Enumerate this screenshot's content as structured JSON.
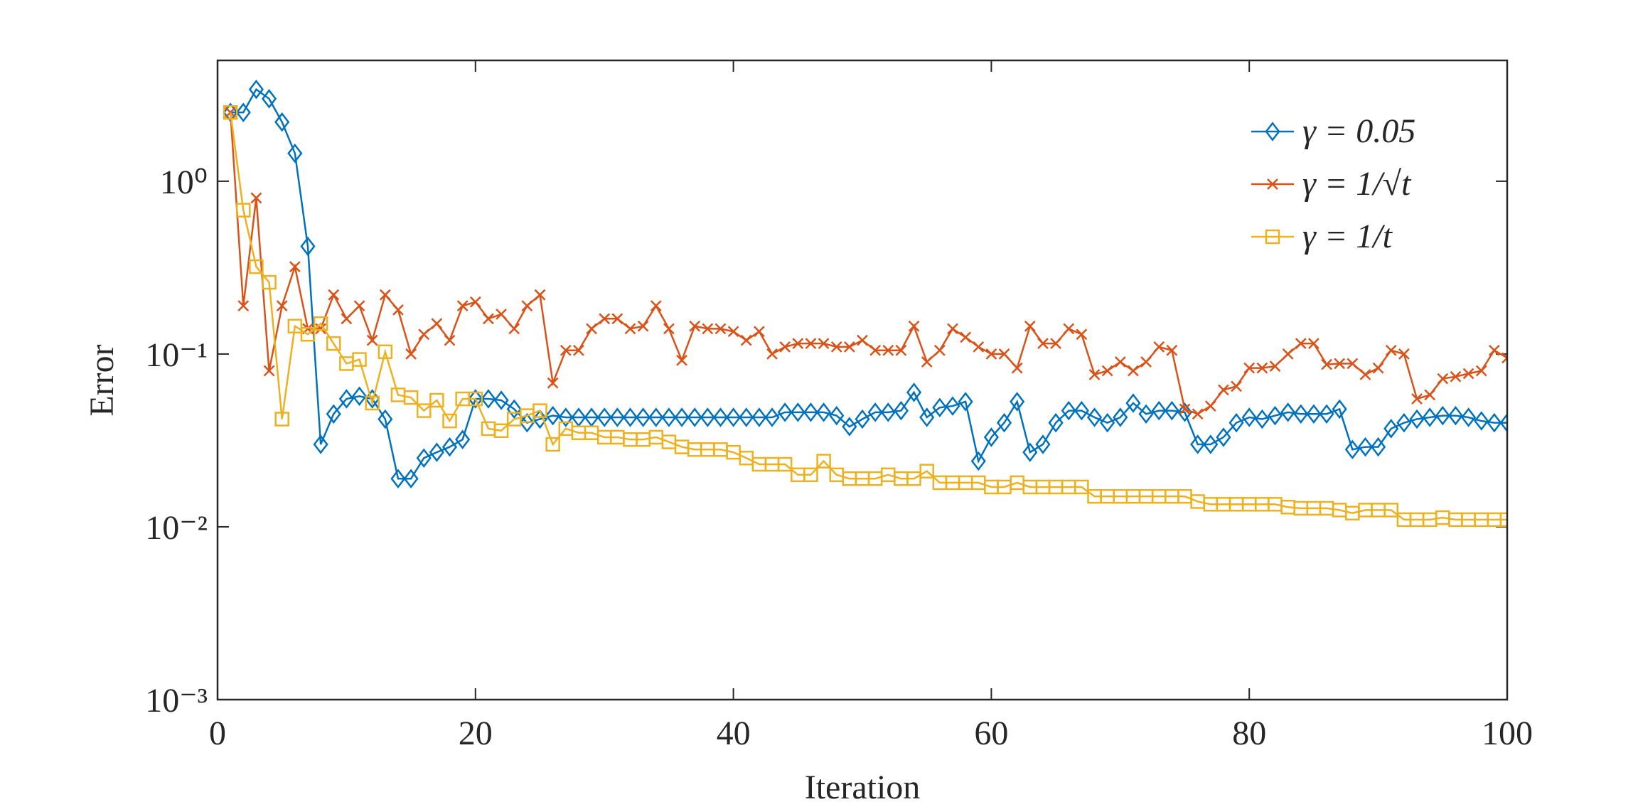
{
  "chart_data": {
    "type": "line",
    "xlabel": "Iteration",
    "ylabel": "Error",
    "x": [
      1,
      2,
      3,
      4,
      5,
      6,
      7,
      8,
      9,
      10,
      11,
      12,
      13,
      14,
      15,
      16,
      17,
      18,
      19,
      20,
      21,
      22,
      23,
      24,
      25,
      26,
      27,
      28,
      29,
      30,
      31,
      32,
      33,
      34,
      35,
      36,
      37,
      38,
      39,
      40,
      41,
      42,
      43,
      44,
      45,
      46,
      47,
      48,
      49,
      50,
      51,
      52,
      53,
      54,
      55,
      56,
      57,
      58,
      59,
      60,
      61,
      62,
      63,
      64,
      65,
      66,
      67,
      68,
      69,
      70,
      71,
      72,
      73,
      74,
      75,
      76,
      77,
      78,
      79,
      80,
      81,
      82,
      83,
      84,
      85,
      86,
      87,
      88,
      89,
      90,
      91,
      92,
      93,
      94,
      95,
      96,
      97,
      98,
      99,
      100
    ],
    "series": [
      {
        "name": "γ = 0.05",
        "color": "#0072BD",
        "marker": "diamond",
        "values": [
          2.5,
          2.5,
          3.4,
          3.0,
          2.2,
          1.45,
          0.42,
          0.03,
          0.045,
          0.055,
          0.057,
          0.055,
          0.042,
          0.019,
          0.019,
          0.025,
          0.027,
          0.029,
          0.032,
          0.055,
          0.055,
          0.054,
          0.048,
          0.04,
          0.042,
          0.044,
          0.043,
          0.043,
          0.043,
          0.043,
          0.043,
          0.043,
          0.043,
          0.043,
          0.043,
          0.043,
          0.043,
          0.043,
          0.043,
          0.043,
          0.043,
          0.043,
          0.043,
          0.046,
          0.046,
          0.046,
          0.046,
          0.044,
          0.038,
          0.042,
          0.046,
          0.046,
          0.047,
          0.06,
          0.043,
          0.049,
          0.05,
          0.053,
          0.024,
          0.033,
          0.04,
          0.053,
          0.027,
          0.03,
          0.04,
          0.047,
          0.047,
          0.043,
          0.04,
          0.043,
          0.052,
          0.045,
          0.047,
          0.047,
          0.046,
          0.03,
          0.03,
          0.033,
          0.04,
          0.043,
          0.042,
          0.044,
          0.046,
          0.045,
          0.045,
          0.045,
          0.048,
          0.028,
          0.029,
          0.029,
          0.037,
          0.04,
          0.042,
          0.043,
          0.044,
          0.044,
          0.043,
          0.041,
          0.04,
          0.04
        ]
      },
      {
        "name": "γ = 1/√t",
        "color": "#D95319",
        "marker": "x",
        "values": [
          2.5,
          0.19,
          0.8,
          0.08,
          0.19,
          0.32,
          0.14,
          0.14,
          0.22,
          0.16,
          0.19,
          0.12,
          0.22,
          0.18,
          0.1,
          0.13,
          0.15,
          0.12,
          0.19,
          0.2,
          0.16,
          0.17,
          0.14,
          0.19,
          0.22,
          0.068,
          0.105,
          0.105,
          0.14,
          0.16,
          0.16,
          0.14,
          0.145,
          0.19,
          0.14,
          0.092,
          0.145,
          0.14,
          0.14,
          0.135,
          0.12,
          0.135,
          0.1,
          0.11,
          0.115,
          0.115,
          0.115,
          0.11,
          0.11,
          0.12,
          0.105,
          0.105,
          0.105,
          0.145,
          0.09,
          0.105,
          0.14,
          0.125,
          0.11,
          0.1,
          0.1,
          0.083,
          0.145,
          0.115,
          0.115,
          0.14,
          0.13,
          0.076,
          0.08,
          0.09,
          0.08,
          0.09,
          0.11,
          0.105,
          0.048,
          0.045,
          0.05,
          0.062,
          0.065,
          0.083,
          0.083,
          0.085,
          0.1,
          0.115,
          0.115,
          0.087,
          0.088,
          0.088,
          0.076,
          0.083,
          0.105,
          0.1,
          0.055,
          0.058,
          0.072,
          0.074,
          0.077,
          0.08,
          0.105,
          0.095
        ]
      },
      {
        "name": "γ = 1/t",
        "color": "#EDB120",
        "marker": "square",
        "values": [
          2.5,
          0.68,
          0.32,
          0.26,
          0.042,
          0.145,
          0.13,
          0.15,
          0.115,
          0.088,
          0.093,
          0.052,
          0.103,
          0.058,
          0.056,
          0.047,
          0.054,
          0.041,
          0.055,
          0.055,
          0.037,
          0.036,
          0.042,
          0.044,
          0.047,
          0.03,
          0.037,
          0.035,
          0.035,
          0.033,
          0.033,
          0.032,
          0.032,
          0.033,
          0.031,
          0.029,
          0.028,
          0.028,
          0.028,
          0.027,
          0.025,
          0.023,
          0.023,
          0.023,
          0.02,
          0.02,
          0.024,
          0.02,
          0.019,
          0.019,
          0.019,
          0.02,
          0.019,
          0.019,
          0.021,
          0.018,
          0.018,
          0.018,
          0.018,
          0.017,
          0.017,
          0.018,
          0.017,
          0.017,
          0.017,
          0.017,
          0.017,
          0.015,
          0.015,
          0.015,
          0.015,
          0.015,
          0.015,
          0.015,
          0.015,
          0.014,
          0.0135,
          0.0135,
          0.0135,
          0.0135,
          0.0135,
          0.0135,
          0.013,
          0.0128,
          0.0128,
          0.0128,
          0.0125,
          0.012,
          0.0125,
          0.0125,
          0.0125,
          0.011,
          0.011,
          0.011,
          0.0113,
          0.011,
          0.011,
          0.011,
          0.011,
          0.011
        ]
      }
    ],
    "xlim": [
      0,
      100
    ],
    "xticks": [
      0,
      20,
      40,
      60,
      80,
      100
    ],
    "ylim": [
      0.001,
      5
    ],
    "log_y": true,
    "yticks": [
      {
        "value": 0.001,
        "label": "10⁻³"
      },
      {
        "value": 0.01,
        "label": "10⁻²"
      },
      {
        "value": 0.1,
        "label": "10⁻¹"
      },
      {
        "value": 1,
        "label": "10⁰"
      }
    ],
    "grid": false,
    "legend": "northeast"
  }
}
